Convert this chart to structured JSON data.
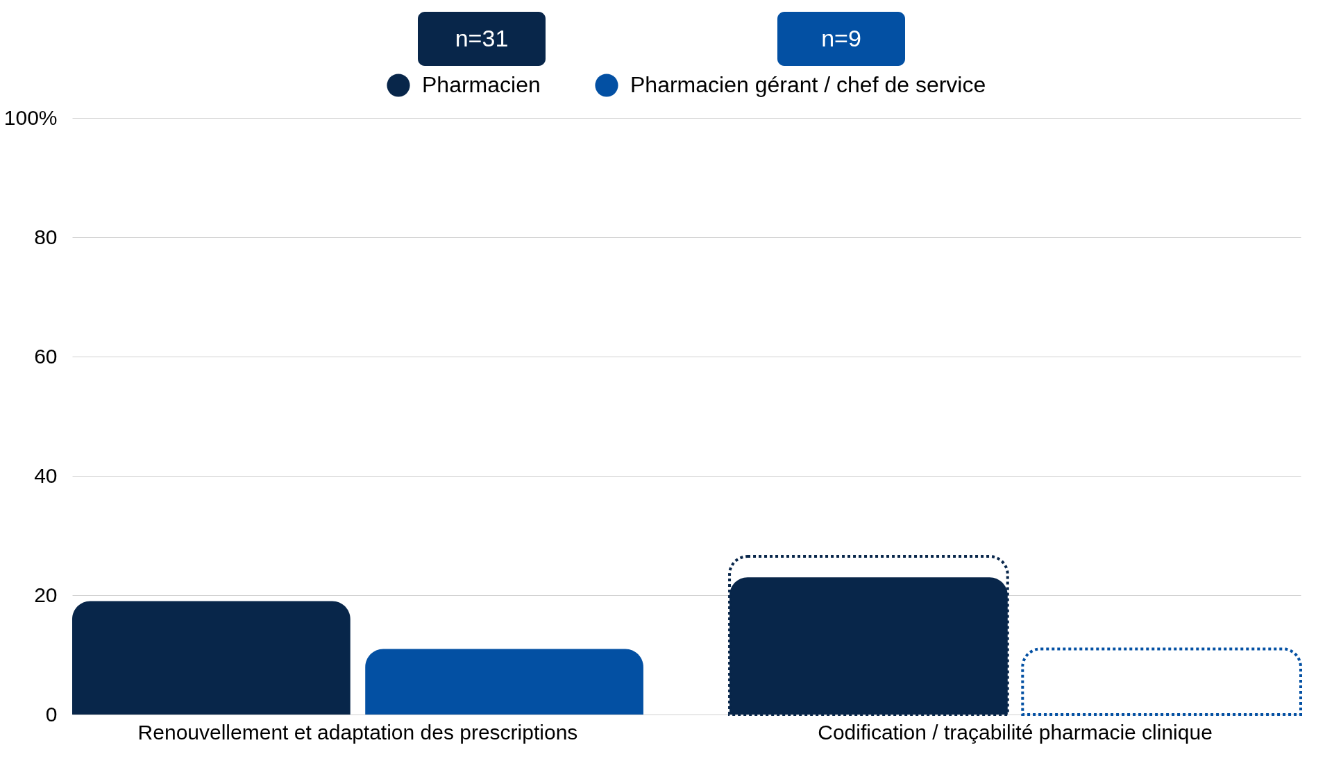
{
  "chart_data": {
    "type": "bar",
    "categories": [
      "Renouvellement et adaptation des prescriptions",
      "Codification / traçabilité pharmacie clinique"
    ],
    "series": [
      {
        "name": "Pharmacien",
        "color": "#08264a",
        "values": [
          19,
          23
        ]
      },
      {
        "name": "Pharmacien gérant / chef de service",
        "color": "#0350a3",
        "values": [
          11,
          null
        ]
      },
      {
        "color": "#08264a",
        "values": [
          null,
          26.5
        ],
        "line_style": "dotted"
      },
      {
        "color": "#0350a3",
        "values": [
          null,
          11
        ],
        "line_style": "dotted"
      }
    ],
    "annotations": [
      "n=31",
      "n=9"
    ],
    "ylim": [
      0,
      100
    ],
    "yticks": [
      0,
      20,
      40,
      60,
      80,
      {
        "value": 100,
        "label": "100%"
      }
    ],
    "grid": "y",
    "legend": "top"
  }
}
